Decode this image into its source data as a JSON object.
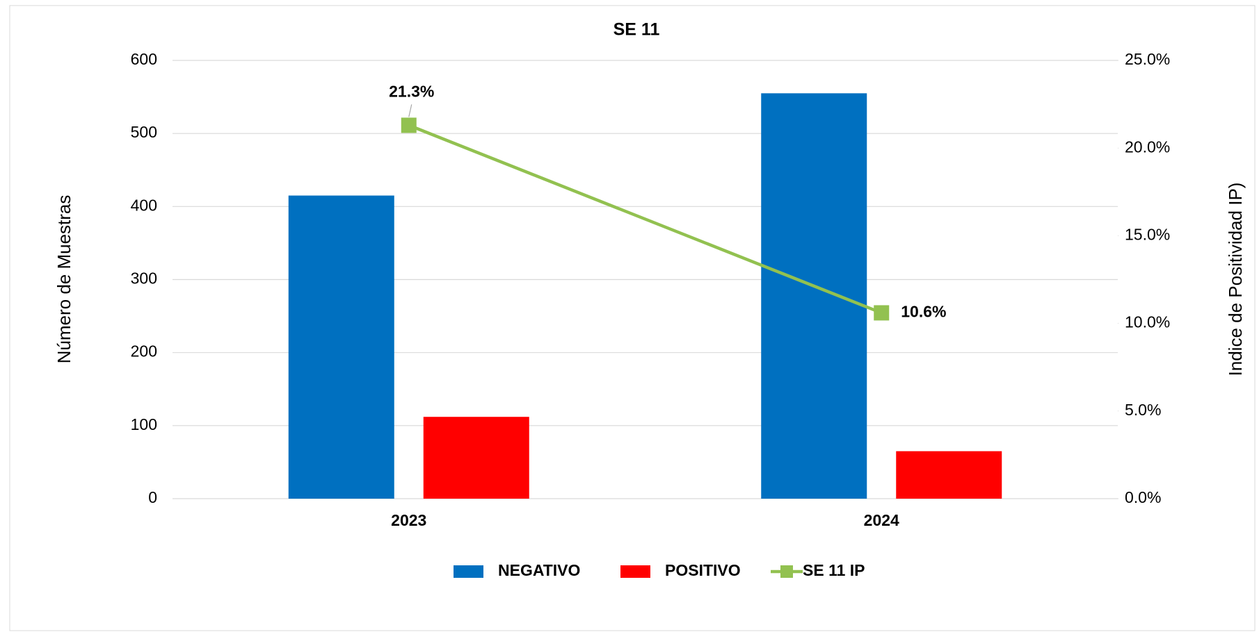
{
  "chart_data": {
    "type": "bar",
    "title": "SE 11",
    "categories": [
      "2023",
      "2024"
    ],
    "y_label": "Número de Muestras",
    "y2_label": "Indice de Positividad IP)",
    "ylim": [
      0,
      600
    ],
    "yticks": [
      0,
      100,
      200,
      300,
      400,
      500,
      600
    ],
    "y2lim": [
      0,
      25
    ],
    "y2ticks": [
      {
        "value": 0,
        "label": "0.0%"
      },
      {
        "value": 5,
        "label": "5.0%"
      },
      {
        "value": 10,
        "label": "10.0%"
      },
      {
        "value": 15,
        "label": "15.0%"
      },
      {
        "value": 20,
        "label": "20.0%"
      },
      {
        "value": 25,
        "label": "25.0%"
      }
    ],
    "grid": true,
    "legend": "bottom",
    "series": [
      {
        "name": "NEGATIVO",
        "type": "bar",
        "color": "#0070c0",
        "values": [
          415,
          555
        ]
      },
      {
        "name": "POSITIVO",
        "type": "bar",
        "color": "#ff0000",
        "values": [
          112,
          65
        ]
      },
      {
        "name": "SE 11 IP",
        "type": "line",
        "axis": "y2",
        "color": "#92c150",
        "values": [
          21.3,
          10.6
        ],
        "value_labels": [
          "21.3%",
          "10.6%"
        ]
      }
    ]
  }
}
